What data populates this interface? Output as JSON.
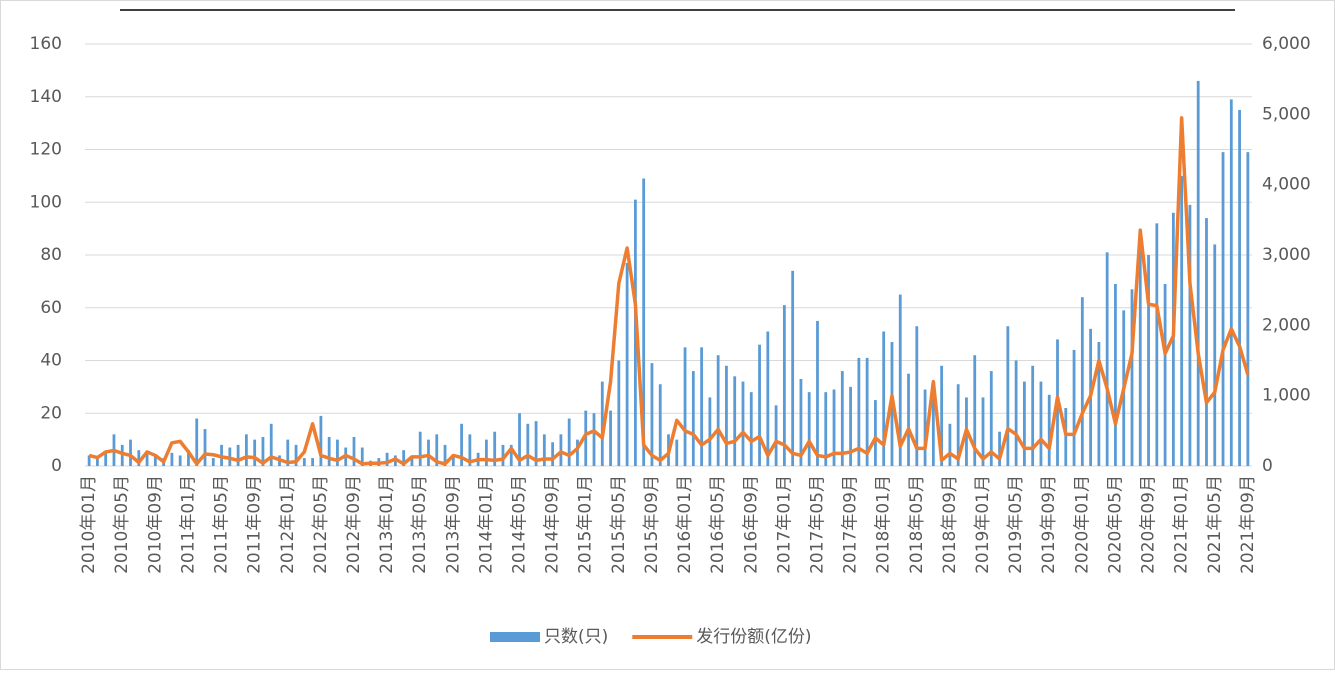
{
  "chart_data": {
    "type": "bar_line",
    "categories": [
      "2010年01月",
      null,
      null,
      null,
      "2010年05月",
      null,
      null,
      null,
      "2010年09月",
      null,
      null,
      null,
      "2011年01月",
      null,
      null,
      null,
      "2011年05月",
      null,
      null,
      null,
      "2011年09月",
      null,
      null,
      null,
      "2012年01月",
      null,
      null,
      null,
      "2012年05月",
      null,
      null,
      null,
      "2012年09月",
      null,
      null,
      null,
      "2013年01月",
      null,
      null,
      null,
      "2013年05月",
      null,
      null,
      null,
      "2013年09月",
      null,
      null,
      null,
      "2014年01月",
      null,
      null,
      null,
      "2014年05月",
      null,
      null,
      null,
      "2014年09月",
      null,
      null,
      null,
      "2015年01月",
      null,
      null,
      null,
      "2015年05月",
      null,
      null,
      null,
      "2015年09月",
      null,
      null,
      null,
      "2016年01月",
      null,
      null,
      null,
      "2016年05月",
      null,
      null,
      null,
      "2016年09月",
      null,
      null,
      null,
      "2017年01月",
      null,
      null,
      null,
      "2017年05月",
      null,
      null,
      null,
      "2017年09月",
      null,
      null,
      null,
      "2018年01月",
      null,
      null,
      null,
      "2018年05月",
      null,
      null,
      null,
      "2018年09月",
      null,
      null,
      null,
      "2019年01月",
      null,
      null,
      null,
      "2019年05月",
      null,
      null,
      null,
      "2019年09月",
      null,
      null,
      null,
      "2020年01月",
      null,
      null,
      null,
      "2020年05月",
      null,
      null,
      null,
      "2020年09月",
      null,
      null,
      null,
      "2021年01月",
      null,
      null,
      null,
      "2021年05月",
      null,
      null,
      null,
      "2021年09月"
    ],
    "series": [
      {
        "name": "只数(只)",
        "type": "bar",
        "color": "#5b9bd5",
        "values": [
          4,
          3,
          5,
          12,
          8,
          10,
          6,
          5,
          4,
          3,
          5,
          4,
          6,
          18,
          14,
          3,
          8,
          7,
          8,
          12,
          10,
          11,
          16,
          4,
          10,
          8,
          3,
          3,
          19,
          11,
          10,
          7,
          11,
          7,
          2,
          3,
          5,
          4,
          6,
          3,
          13,
          10,
          12,
          8,
          4,
          16,
          12,
          5,
          10,
          13,
          8,
          8,
          20,
          16,
          17,
          12,
          9,
          12,
          18,
          10,
          21,
          20,
          32,
          21,
          40,
          77,
          101,
          109,
          39,
          31,
          12,
          10,
          45,
          36,
          45,
          26,
          42,
          38,
          34,
          32,
          28,
          46,
          51,
          23,
          61,
          74,
          33,
          28,
          55,
          28,
          29,
          36,
          30,
          41,
          41,
          25,
          51,
          47,
          65,
          35,
          53,
          29,
          32,
          38,
          16,
          31,
          26,
          42,
          26,
          36,
          13,
          53,
          40,
          32,
          38,
          32,
          27,
          48,
          22,
          44,
          64,
          52,
          47,
          81,
          69,
          59,
          67,
          90,
          80,
          92,
          69,
          96,
          110,
          99,
          146,
          94,
          84,
          119,
          139,
          135,
          119
        ]
      },
      {
        "name": "发行份额(亿份)",
        "type": "line",
        "axis": "y2",
        "color": "#ed7d31",
        "values": [
          150,
          120,
          200,
          220,
          180,
          150,
          50,
          200,
          150,
          60,
          330,
          350,
          200,
          30,
          170,
          160,
          130,
          110,
          80,
          130,
          120,
          40,
          130,
          90,
          50,
          60,
          200,
          600,
          150,
          110,
          80,
          150,
          100,
          30,
          40,
          40,
          50,
          100,
          30,
          130,
          130,
          150,
          60,
          30,
          150,
          120,
          60,
          90,
          90,
          80,
          100,
          250,
          80,
          150,
          80,
          100,
          100,
          200,
          150,
          250,
          450,
          500,
          400,
          1200,
          2600,
          3100,
          2300,
          300,
          150,
          80,
          180,
          650,
          500,
          450,
          300,
          380,
          520,
          320,
          350,
          480,
          350,
          420,
          150,
          350,
          300,
          180,
          150,
          350,
          150,
          130,
          180,
          180,
          200,
          250,
          180,
          400,
          300,
          1000,
          280,
          530,
          250,
          250,
          1200,
          80,
          180,
          100,
          520,
          250,
          100,
          200,
          100,
          530,
          450,
          250,
          250,
          380,
          250,
          980,
          450,
          450,
          750,
          1000,
          1500,
          1100,
          600,
          1100,
          1600,
          3350,
          2300,
          2280,
          1600,
          1850,
          4950,
          2600,
          1600,
          900,
          1050,
          1650,
          1950,
          1700,
          1300
        ]
      }
    ],
    "ylim": [
      0,
      160
    ],
    "yticks": [
      0,
      20,
      40,
      60,
      80,
      100,
      120,
      140,
      160
    ],
    "y2lim": [
      0,
      6000
    ],
    "y2ticks": [
      0,
      {
        "value": 1000,
        "label": "1,000"
      },
      {
        "value": 2000,
        "label": "2,000"
      },
      {
        "value": 3000,
        "label": "3,000"
      },
      {
        "value": 4000,
        "label": "4,000"
      },
      {
        "value": 5000,
        "label": "5,000"
      },
      {
        "value": 6000,
        "label": "6,000"
      }
    ],
    "grid": true,
    "legend": "bottom"
  }
}
